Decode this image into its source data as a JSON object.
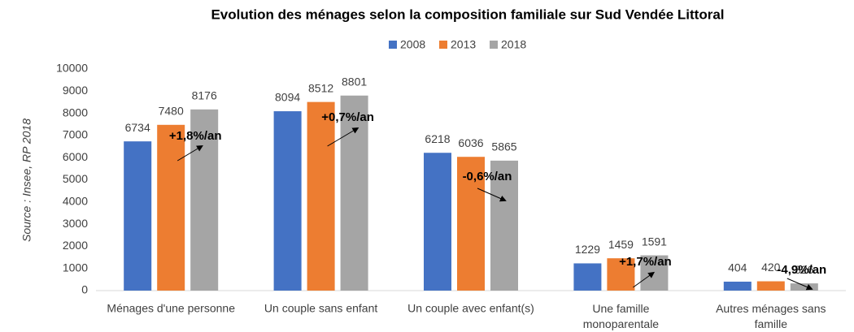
{
  "chart_data": {
    "type": "bar",
    "title": "Evolution des ménages selon la composition familiale sur Sud Vendée Littoral",
    "y_label": "Source : Insee, RP 2018",
    "categories": [
      "Ménages d'une personne",
      "Un couple sans enfant",
      "Un couple avec enfant(s)",
      "Une famille monoparentale",
      "Autres ménages sans famille"
    ],
    "series": [
      {
        "name": "2008",
        "color": "#4472c4",
        "values": [
          6734,
          8094,
          6218,
          1229,
          404
        ]
      },
      {
        "name": "2013",
        "color": "#ed7d31",
        "values": [
          7480,
          8512,
          6036,
          1459,
          420
        ]
      },
      {
        "name": "2018",
        "color": "#a5a5a5",
        "values": [
          8176,
          8801,
          5865,
          1591,
          326
        ]
      }
    ],
    "annotations": [
      "+1,8%/an",
      "+0,7%/an",
      "-0,6%/an",
      "+1,7%/an",
      "-4,9%/an"
    ],
    "ylim": [
      0,
      10000
    ],
    "yticks": [
      0,
      1000,
      2000,
      3000,
      4000,
      5000,
      6000,
      7000,
      8000,
      9000,
      10000
    ],
    "legend": "top"
  }
}
